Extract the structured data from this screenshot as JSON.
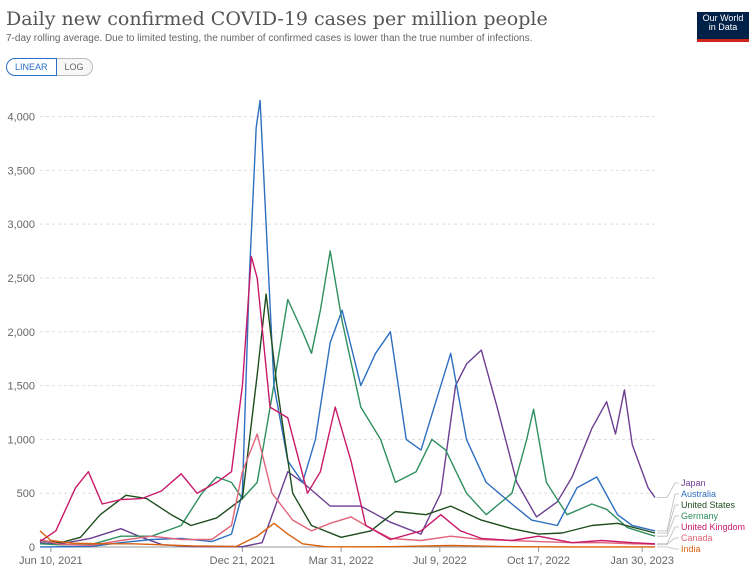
{
  "header": {
    "title": "Daily new confirmed COVID-19 cases per million people",
    "subtitle": "7-day rolling average. Due to limited testing, the number of confirmed cases is lower than the true number of infections.",
    "logo_line1": "Our World",
    "logo_line2": "in Data",
    "toggle_linear": "LINEAR",
    "toggle_log": "LOG"
  },
  "chart_data": {
    "type": "line",
    "title": "Daily new confirmed COVID-19 cases per million people",
    "xlabel": "",
    "ylabel": "",
    "x_ticks": [
      "Jun 10, 2021",
      "Dec 21, 2021",
      "Mar 31, 2022",
      "Jul 9, 2022",
      "Oct 17, 2022",
      "Jan 30, 2023"
    ],
    "y_ticks": [
      "0",
      "500",
      "1,000",
      "1,500",
      "2,000",
      "2,500",
      "3,000",
      "3,500",
      "4,000"
    ],
    "ylim": [
      0,
      4200
    ],
    "x_range": [
      "2021-05-30",
      "2023-02-12"
    ],
    "grid": true,
    "legend_position": "right, labels at line ends",
    "series": [
      {
        "name": "Japan",
        "color": "#6d3e91",
        "points": [
          [
            "2021-05-30",
            40
          ],
          [
            "2021-06-20",
            30
          ],
          [
            "2021-07-20",
            80
          ],
          [
            "2021-08-20",
            170
          ],
          [
            "2021-09-10",
            90
          ],
          [
            "2021-10-01",
            20
          ],
          [
            "2021-11-01",
            5
          ],
          [
            "2021-12-21",
            3
          ],
          [
            "2022-01-10",
            40
          ],
          [
            "2022-02-05",
            700
          ],
          [
            "2022-02-20",
            600
          ],
          [
            "2022-03-20",
            380
          ],
          [
            "2022-04-20",
            380
          ],
          [
            "2022-05-20",
            230
          ],
          [
            "2022-06-20",
            120
          ],
          [
            "2022-07-10",
            500
          ],
          [
            "2022-07-25",
            1500
          ],
          [
            "2022-08-05",
            1700
          ],
          [
            "2022-08-20",
            1830
          ],
          [
            "2022-09-05",
            1300
          ],
          [
            "2022-09-25",
            600
          ],
          [
            "2022-10-15",
            280
          ],
          [
            "2022-11-05",
            420
          ],
          [
            "2022-11-20",
            650
          ],
          [
            "2022-12-10",
            1100
          ],
          [
            "2022-12-25",
            1350
          ],
          [
            "2023-01-03",
            1050
          ],
          [
            "2023-01-12",
            1460
          ],
          [
            "2023-01-20",
            950
          ],
          [
            "2023-02-05",
            550
          ],
          [
            "2023-02-12",
            460
          ]
        ]
      },
      {
        "name": "Germany",
        "color": "#2f8f5f",
        "points": [
          [
            "2021-05-30",
            30
          ],
          [
            "2021-06-20",
            20
          ],
          [
            "2021-07-20",
            20
          ],
          [
            "2021-08-20",
            100
          ],
          [
            "2021-09-20",
            100
          ],
          [
            "2021-10-20",
            200
          ],
          [
            "2021-11-10",
            500
          ],
          [
            "2021-11-25",
            650
          ],
          [
            "2021-12-10",
            600
          ],
          [
            "2021-12-21",
            450
          ],
          [
            "2022-01-05",
            600
          ],
          [
            "2022-01-20",
            1400
          ],
          [
            "2022-02-05",
            2300
          ],
          [
            "2022-02-20",
            2000
          ],
          [
            "2022-03-01",
            1800
          ],
          [
            "2022-03-10",
            2200
          ],
          [
            "2022-03-20",
            2750
          ],
          [
            "2022-04-01",
            2100
          ],
          [
            "2022-04-20",
            1300
          ],
          [
            "2022-05-10",
            1000
          ],
          [
            "2022-05-25",
            600
          ],
          [
            "2022-06-15",
            700
          ],
          [
            "2022-07-01",
            1000
          ],
          [
            "2022-07-15",
            900
          ],
          [
            "2022-08-05",
            500
          ],
          [
            "2022-08-25",
            300
          ],
          [
            "2022-09-20",
            500
          ],
          [
            "2022-10-05",
            1000
          ],
          [
            "2022-10-12",
            1280
          ],
          [
            "2022-10-25",
            600
          ],
          [
            "2022-11-15",
            300
          ],
          [
            "2022-12-10",
            400
          ],
          [
            "2022-12-25",
            350
          ],
          [
            "2023-01-15",
            180
          ],
          [
            "2023-02-12",
            100
          ]
        ]
      },
      {
        "name": "Australia",
        "color": "#2e6fbf",
        "points": [
          [
            "2021-05-30",
            1
          ],
          [
            "2021-07-20",
            5
          ],
          [
            "2021-08-20",
            40
          ],
          [
            "2021-09-20",
            70
          ],
          [
            "2021-10-20",
            80
          ],
          [
            "2021-11-20",
            50
          ],
          [
            "2021-12-10",
            120
          ],
          [
            "2021-12-21",
            500
          ],
          [
            "2021-12-28",
            2500
          ],
          [
            "2022-01-04",
            3900
          ],
          [
            "2022-01-08",
            4150
          ],
          [
            "2022-01-14",
            3000
          ],
          [
            "2022-01-22",
            1500
          ],
          [
            "2022-02-05",
            800
          ],
          [
            "2022-02-20",
            600
          ],
          [
            "2022-03-05",
            1000
          ],
          [
            "2022-03-20",
            1900
          ],
          [
            "2022-04-01",
            2200
          ],
          [
            "2022-04-20",
            1500
          ],
          [
            "2022-05-05",
            1800
          ],
          [
            "2022-05-20",
            2000
          ],
          [
            "2022-06-05",
            1000
          ],
          [
            "2022-06-20",
            900
          ],
          [
            "2022-07-10",
            1500
          ],
          [
            "2022-07-20",
            1800
          ],
          [
            "2022-08-05",
            1000
          ],
          [
            "2022-08-25",
            600
          ],
          [
            "2022-09-20",
            400
          ],
          [
            "2022-10-10",
            250
          ],
          [
            "2022-11-05",
            200
          ],
          [
            "2022-11-25",
            550
          ],
          [
            "2022-12-15",
            650
          ],
          [
            "2023-01-05",
            300
          ],
          [
            "2023-01-20",
            200
          ],
          [
            "2023-02-12",
            150
          ]
        ]
      },
      {
        "name": "United States",
        "color": "#1e4d1e",
        "points": [
          [
            "2021-05-30",
            60
          ],
          [
            "2021-06-20",
            40
          ],
          [
            "2021-07-10",
            90
          ],
          [
            "2021-07-30",
            300
          ],
          [
            "2021-08-25",
            480
          ],
          [
            "2021-09-15",
            450
          ],
          [
            "2021-10-10",
            300
          ],
          [
            "2021-10-30",
            200
          ],
          [
            "2021-11-25",
            270
          ],
          [
            "2021-12-21",
            450
          ],
          [
            "2022-01-05",
            1600
          ],
          [
            "2022-01-14",
            2350
          ],
          [
            "2022-01-25",
            1500
          ],
          [
            "2022-02-10",
            500
          ],
          [
            "2022-03-01",
            200
          ],
          [
            "2022-03-31",
            90
          ],
          [
            "2022-04-30",
            150
          ],
          [
            "2022-05-25",
            330
          ],
          [
            "2022-06-25",
            300
          ],
          [
            "2022-07-20",
            380
          ],
          [
            "2022-08-20",
            250
          ],
          [
            "2022-09-20",
            170
          ],
          [
            "2022-10-17",
            120
          ],
          [
            "2022-11-10",
            130
          ],
          [
            "2022-12-10",
            200
          ],
          [
            "2023-01-05",
            220
          ],
          [
            "2023-02-12",
            130
          ]
        ]
      },
      {
        "name": "Canada",
        "color": "#e0657a",
        "points": [
          [
            "2021-05-30",
            70
          ],
          [
            "2021-06-20",
            25
          ],
          [
            "2021-07-20",
            15
          ],
          [
            "2021-08-20",
            60
          ],
          [
            "2021-09-20",
            100
          ],
          [
            "2021-10-20",
            70
          ],
          [
            "2021-11-20",
            70
          ],
          [
            "2021-12-10",
            200
          ],
          [
            "2021-12-21",
            700
          ],
          [
            "2022-01-05",
            1050
          ],
          [
            "2022-01-20",
            500
          ],
          [
            "2022-02-10",
            250
          ],
          [
            "2022-03-01",
            150
          ],
          [
            "2022-03-20",
            220
          ],
          [
            "2022-04-10",
            280
          ],
          [
            "2022-04-25",
            200
          ],
          [
            "2022-05-20",
            80
          ],
          [
            "2022-06-20",
            60
          ],
          [
            "2022-07-20",
            100
          ],
          [
            "2022-08-20",
            70
          ],
          [
            "2022-09-20",
            60
          ],
          [
            "2022-10-17",
            50
          ],
          [
            "2022-11-20",
            40
          ],
          [
            "2022-12-20",
            40
          ],
          [
            "2023-01-20",
            30
          ],
          [
            "2023-02-12",
            25
          ]
        ]
      },
      {
        "name": "United Kingdom",
        "color": "#c8196a",
        "points": [
          [
            "2021-05-30",
            50
          ],
          [
            "2021-06-15",
            150
          ],
          [
            "2021-07-05",
            550
          ],
          [
            "2021-07-18",
            700
          ],
          [
            "2021-08-01",
            400
          ],
          [
            "2021-08-20",
            440
          ],
          [
            "2021-09-10",
            450
          ],
          [
            "2021-09-30",
            520
          ],
          [
            "2021-10-20",
            680
          ],
          [
            "2021-11-05",
            500
          ],
          [
            "2021-11-25",
            600
          ],
          [
            "2021-12-10",
            700
          ],
          [
            "2021-12-21",
            1500
          ],
          [
            "2021-12-30",
            2700
          ],
          [
            "2022-01-05",
            2500
          ],
          [
            "2022-01-18",
            1300
          ],
          [
            "2022-02-05",
            1200
          ],
          [
            "2022-02-25",
            500
          ],
          [
            "2022-03-10",
            700
          ],
          [
            "2022-03-25",
            1300
          ],
          [
            "2022-04-10",
            800
          ],
          [
            "2022-04-25",
            200
          ],
          [
            "2022-05-20",
            70
          ],
          [
            "2022-06-20",
            150
          ],
          [
            "2022-07-10",
            300
          ],
          [
            "2022-07-30",
            150
          ],
          [
            "2022-08-20",
            80
          ],
          [
            "2022-09-20",
            60
          ],
          [
            "2022-10-17",
            100
          ],
          [
            "2022-11-20",
            40
          ],
          [
            "2022-12-20",
            60
          ],
          [
            "2023-01-20",
            40
          ],
          [
            "2023-02-12",
            30
          ]
        ]
      },
      {
        "name": "India",
        "color": "#d9600e",
        "points": [
          [
            "2021-05-30",
            150
          ],
          [
            "2021-06-10",
            60
          ],
          [
            "2021-07-01",
            35
          ],
          [
            "2021-08-01",
            30
          ],
          [
            "2021-09-01",
            30
          ],
          [
            "2021-10-01",
            20
          ],
          [
            "2021-11-01",
            10
          ],
          [
            "2021-12-15",
            6
          ],
          [
            "2022-01-05",
            100
          ],
          [
            "2022-01-22",
            220
          ],
          [
            "2022-02-05",
            120
          ],
          [
            "2022-02-20",
            30
          ],
          [
            "2022-03-15",
            3
          ],
          [
            "2022-04-20",
            2
          ],
          [
            "2022-05-20",
            3
          ],
          [
            "2022-06-25",
            10
          ],
          [
            "2022-07-20",
            14
          ],
          [
            "2022-08-20",
            8
          ],
          [
            "2022-09-20",
            3
          ],
          [
            "2022-10-17",
            2
          ],
          [
            "2022-11-20",
            1
          ],
          [
            "2022-12-20",
            0.5
          ],
          [
            "2023-02-12",
            0.5
          ]
        ]
      }
    ]
  }
}
